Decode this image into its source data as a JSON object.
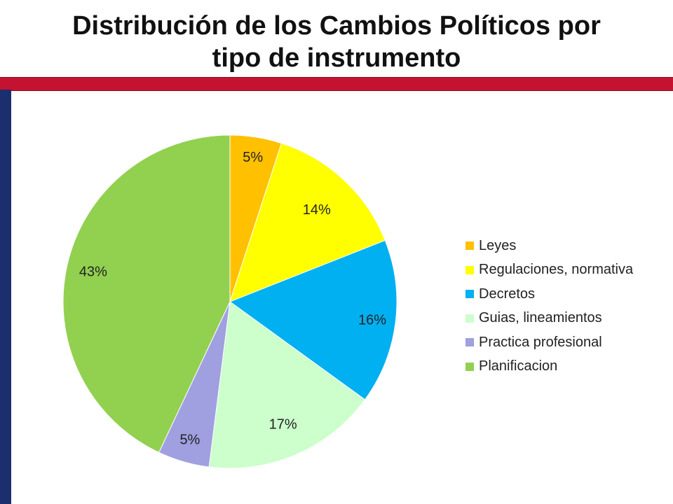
{
  "slide": {
    "title_line1": "Distribución de los Cambios Políticos por",
    "title_line2": "tipo de instrumento",
    "accent_red": "#c41231",
    "accent_blue": "#1b2f6e"
  },
  "chart_data": {
    "type": "pie",
    "title": "",
    "legend_position": "right",
    "series": [
      {
        "name": "Leyes",
        "value": 5,
        "label": "5%",
        "color": "#ffc000"
      },
      {
        "name": "Regulaciones, normativa",
        "value": 14,
        "label": "14%",
        "color": "#ffff00"
      },
      {
        "name": "Decretos",
        "value": 16,
        "label": "16%",
        "color": "#00b0f0"
      },
      {
        "name": "Guias, lineamientos",
        "value": 17,
        "label": "17%",
        "color": "#ccffcc"
      },
      {
        "name": "Practica profesional",
        "value": 5,
        "label": "5%",
        "color": "#a09fe0"
      },
      {
        "name": "Planificacion",
        "value": 43,
        "label": "43%",
        "color": "#92d050"
      }
    ]
  }
}
